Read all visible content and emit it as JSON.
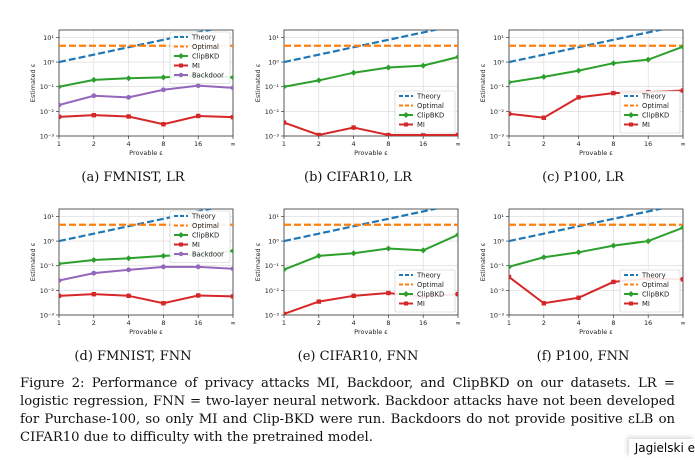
{
  "figure": {
    "caption_prefix": "Figure 2:",
    "caption_text": "Performance of privacy attacks MI, Backdoor, and ClipBKD on our datasets. LR = logistic regression, FNN = two-layer neural network. Backdoor attacks have not been developed for Purchase-100, so only MI and Clip-BKD were run. Backdoors do not provide positive εLB on CIFAR10 due to difficulty with the pretrained model.",
    "author_tag": "Jagielski e"
  },
  "chart_data": [
    {
      "id": "a",
      "subcaption": "(a) FMNIST, LR",
      "type": "line",
      "xlabel": "Provable ε",
      "ylabel": "Estimated ε",
      "x": [
        1,
        2,
        4,
        8,
        16,
        "∞"
      ],
      "xticks": [
        "1",
        "2",
        "4",
        "8",
        "16",
        "∞"
      ],
      "yscale": "log",
      "ylim": [
        0.001,
        20
      ],
      "yticks": [
        "10⁻³",
        "10⁻²",
        "10⁻¹",
        "10⁰",
        "10¹"
      ],
      "grid": true,
      "legend_position": "top-right",
      "series": [
        {
          "name": "Theory",
          "style": "dashed",
          "color": "#1f77b4",
          "values": [
            1,
            2,
            4,
            8,
            16,
            null
          ]
        },
        {
          "name": "Optimal",
          "style": "dashed",
          "color": "#ff7f0e",
          "values": [
            4.6,
            4.6,
            4.6,
            4.6,
            4.6,
            4.6
          ]
        },
        {
          "name": "ClipBKD",
          "style": "solid",
          "color": "#2ca02c",
          "values": [
            0.1,
            0.19,
            0.22,
            0.24,
            0.28,
            0.24
          ]
        },
        {
          "name": "MI",
          "style": "solid",
          "color": "#d62728",
          "values": [
            0.006,
            0.007,
            0.0062,
            0.003,
            0.0065,
            0.0058
          ]
        },
        {
          "name": "Backdoor",
          "style": "solid",
          "color": "#9467bd",
          "values": [
            0.018,
            0.043,
            0.037,
            0.075,
            0.11,
            0.09
          ]
        }
      ]
    },
    {
      "id": "b",
      "subcaption": "(b) CIFAR10, LR",
      "type": "line",
      "xlabel": "Provable ε",
      "ylabel": "Estimated ε",
      "x": [
        1,
        2,
        4,
        8,
        16,
        "∞"
      ],
      "xticks": [
        "1",
        "2",
        "4",
        "8",
        "16",
        "∞"
      ],
      "yscale": "log",
      "ylim": [
        0.001,
        20
      ],
      "yticks": [
        "10⁻³",
        "10⁻²",
        "10⁻¹",
        "10⁰",
        "10¹"
      ],
      "grid": true,
      "legend_position": "bottom-right",
      "series": [
        {
          "name": "Theory",
          "style": "dashed",
          "color": "#1f77b4",
          "values": [
            1,
            2,
            4,
            8,
            16,
            null
          ]
        },
        {
          "name": "Optimal",
          "style": "dashed",
          "color": "#ff7f0e",
          "values": [
            4.6,
            4.6,
            4.6,
            4.6,
            4.6,
            4.6
          ]
        },
        {
          "name": "ClipBKD",
          "style": "solid",
          "color": "#2ca02c",
          "values": [
            0.1,
            0.18,
            0.37,
            0.6,
            0.72,
            1.6
          ]
        },
        {
          "name": "MI",
          "style": "solid",
          "color": "#d62728",
          "values": [
            0.0035,
            0.0011,
            0.0022,
            0.0011,
            0.0011,
            0.0011
          ]
        }
      ]
    },
    {
      "id": "c",
      "subcaption": "(c) P100, LR",
      "type": "line",
      "xlabel": "Provable ε",
      "ylabel": "Estimated ε",
      "x": [
        1,
        2,
        4,
        8,
        16,
        "∞"
      ],
      "xticks": [
        "1",
        "2",
        "4",
        "8",
        "16",
        "∞"
      ],
      "yscale": "log",
      "ylim": [
        0.001,
        20
      ],
      "yticks": [
        "10⁻³",
        "10⁻²",
        "10⁻¹",
        "10⁰",
        "10¹"
      ],
      "grid": true,
      "legend_position": "bottom-right",
      "series": [
        {
          "name": "Theory",
          "style": "dashed",
          "color": "#1f77b4",
          "values": [
            1,
            2,
            4,
            8,
            16,
            null
          ]
        },
        {
          "name": "Optimal",
          "style": "dashed",
          "color": "#ff7f0e",
          "values": [
            4.6,
            4.6,
            4.6,
            4.6,
            4.6,
            4.6
          ]
        },
        {
          "name": "ClipBKD",
          "style": "solid",
          "color": "#2ca02c",
          "values": [
            0.15,
            0.25,
            0.45,
            0.9,
            1.25,
            4.2
          ]
        },
        {
          "name": "MI",
          "style": "solid",
          "color": "#d62728",
          "values": [
            0.008,
            0.0055,
            0.037,
            0.055,
            0.06,
            0.07
          ]
        }
      ]
    },
    {
      "id": "d",
      "subcaption": "(d) FMNIST, FNN",
      "type": "line",
      "xlabel": "Provable ε",
      "ylabel": "Estimated ε",
      "x": [
        1,
        2,
        4,
        8,
        16,
        "∞"
      ],
      "xticks": [
        "1",
        "2",
        "4",
        "8",
        "16",
        "∞"
      ],
      "yscale": "log",
      "ylim": [
        0.001,
        20
      ],
      "yticks": [
        "10⁻³",
        "10⁻²",
        "10⁻¹",
        "10⁰",
        "10¹"
      ],
      "grid": true,
      "legend_position": "top-right",
      "series": [
        {
          "name": "Theory",
          "style": "dashed",
          "color": "#1f77b4",
          "values": [
            1,
            2,
            4,
            8,
            16,
            null
          ]
        },
        {
          "name": "Optimal",
          "style": "dashed",
          "color": "#ff7f0e",
          "values": [
            4.6,
            4.6,
            4.6,
            4.6,
            4.6,
            4.6
          ]
        },
        {
          "name": "ClipBKD",
          "style": "solid",
          "color": "#2ca02c",
          "values": [
            0.12,
            0.17,
            0.2,
            0.25,
            0.28,
            0.4
          ]
        },
        {
          "name": "MI",
          "style": "solid",
          "color": "#d62728",
          "values": [
            0.006,
            0.007,
            0.006,
            0.003,
            0.0062,
            0.0057
          ]
        },
        {
          "name": "Backdoor",
          "style": "solid",
          "color": "#9467bd",
          "values": [
            0.025,
            0.05,
            0.068,
            0.09,
            0.09,
            0.075
          ]
        }
      ]
    },
    {
      "id": "e",
      "subcaption": "(e) CIFAR10, FNN",
      "type": "line",
      "xlabel": "Provable ε",
      "ylabel": "Estimated ε",
      "x": [
        1,
        2,
        4,
        8,
        16,
        "∞"
      ],
      "xticks": [
        "1",
        "2",
        "4",
        "8",
        "16",
        "∞"
      ],
      "yscale": "log",
      "ylim": [
        0.001,
        20
      ],
      "yticks": [
        "10⁻³",
        "10⁻²",
        "10⁻¹",
        "10⁰",
        "10¹"
      ],
      "grid": true,
      "legend_position": "bottom-right",
      "series": [
        {
          "name": "Theory",
          "style": "dashed",
          "color": "#1f77b4",
          "values": [
            1,
            2,
            4,
            8,
            16,
            null
          ]
        },
        {
          "name": "Optimal",
          "style": "dashed",
          "color": "#ff7f0e",
          "values": [
            4.6,
            4.6,
            4.6,
            4.6,
            4.6,
            4.6
          ]
        },
        {
          "name": "ClipBKD",
          "style": "solid",
          "color": "#2ca02c",
          "values": [
            0.07,
            0.25,
            0.32,
            0.5,
            0.42,
            1.8
          ]
        },
        {
          "name": "MI",
          "style": "solid",
          "color": "#d62728",
          "values": [
            0.0011,
            0.0035,
            0.006,
            0.0078,
            0.0055,
            0.007
          ]
        }
      ]
    },
    {
      "id": "f",
      "subcaption": "(f) P100, FNN",
      "type": "line",
      "xlabel": "Provable ε",
      "ylabel": "Estimated ε",
      "x": [
        1,
        2,
        4,
        8,
        16,
        "∞"
      ],
      "xticks": [
        "1",
        "2",
        "4",
        "8",
        "16",
        "∞"
      ],
      "yscale": "log",
      "ylim": [
        0.001,
        20
      ],
      "yticks": [
        "10⁻³",
        "10⁻²",
        "10⁻¹",
        "10⁰",
        "10¹"
      ],
      "grid": true,
      "legend_position": "bottom-right",
      "series": [
        {
          "name": "Theory",
          "style": "dashed",
          "color": "#1f77b4",
          "values": [
            1,
            2,
            4,
            8,
            16,
            null
          ]
        },
        {
          "name": "Optimal",
          "style": "dashed",
          "color": "#ff7f0e",
          "values": [
            4.6,
            4.6,
            4.6,
            4.6,
            4.6,
            4.6
          ]
        },
        {
          "name": "ClipBKD",
          "style": "solid",
          "color": "#2ca02c",
          "values": [
            0.09,
            0.22,
            0.35,
            0.65,
            1.0,
            3.5
          ]
        },
        {
          "name": "MI",
          "style": "solid",
          "color": "#d62728",
          "values": [
            0.035,
            0.003,
            0.005,
            0.022,
            0.03,
            0.028
          ]
        }
      ]
    }
  ]
}
